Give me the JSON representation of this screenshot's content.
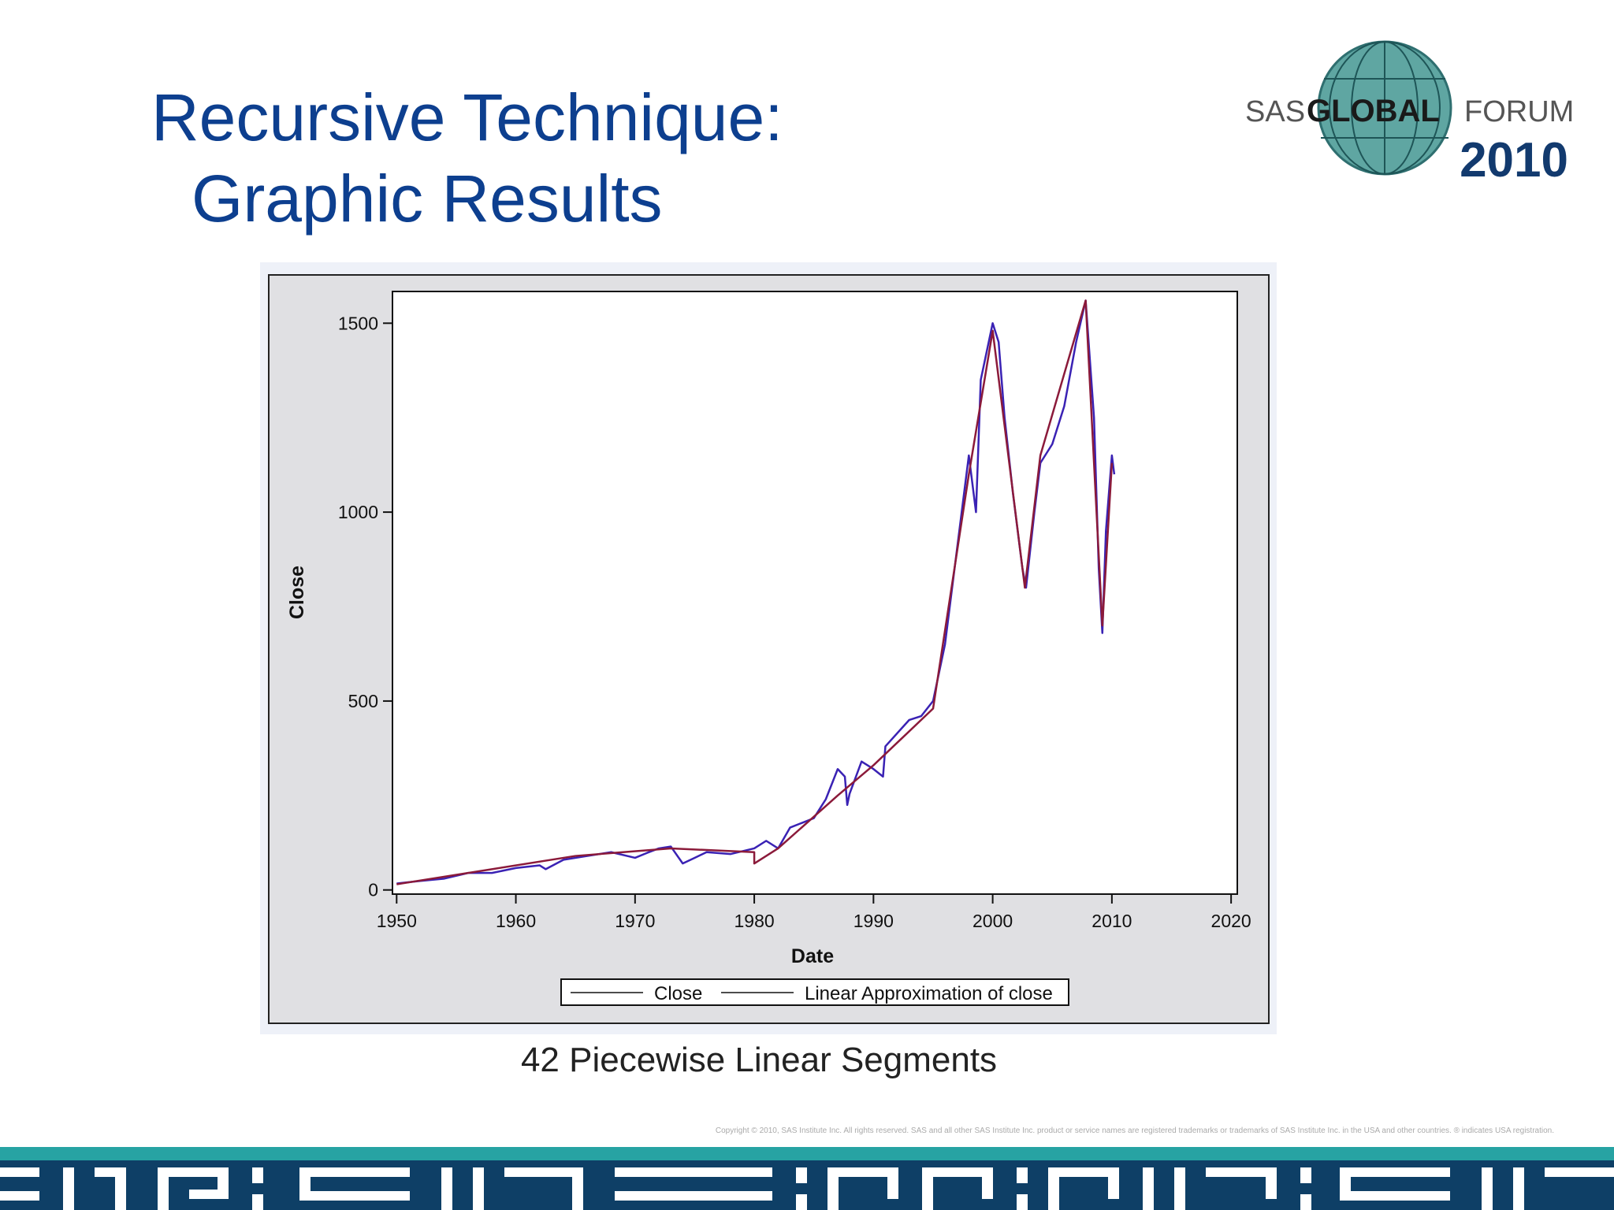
{
  "slide": {
    "title_line1": "Recursive Technique:",
    "title_line2": "Graphic Results",
    "caption": "42 Piecewise Linear Segments",
    "copyright": "Copyright © 2010, SAS Institute Inc. All rights reserved. SAS and all other SAS Institute Inc. product or service names are registered trademarks or trademarks of SAS Institute Inc. in the USA and other countries. ® indicates USA registration.",
    "logo": {
      "sas": "SAS",
      "global": "GLOBAL",
      "forum": "FORUM",
      "year": "2010"
    }
  },
  "chart_data": {
    "type": "line",
    "xlabel": "Date",
    "ylabel": "Close",
    "xlim": [
      1949.65,
      2020.52
    ],
    "ylim": [
      -11,
      1584
    ],
    "xticks": [
      1950,
      1960,
      1970,
      1980,
      1990,
      2000,
      2010,
      2020
    ],
    "yticks": [
      0,
      500,
      1000,
      1500
    ],
    "grid": false,
    "legend": "bottom",
    "series": [
      {
        "name": "Close",
        "color": "#3a22b4",
        "x": [
          1950,
          1952,
          1954,
          1956,
          1958,
          1960,
          1962,
          1962.5,
          1964,
          1966,
          1967,
          1968,
          1970,
          1971,
          1972,
          1973,
          1974,
          1975,
          1976,
          1978,
          1980,
          1981,
          1982,
          1983,
          1985,
          1986,
          1987,
          1987.6,
          1987.8,
          1988,
          1989,
          1990,
          1990.8,
          1991,
          1993,
          1994,
          1995,
          1996,
          1997,
          1998,
          1998.6,
          1999,
          2000,
          2000.5,
          2001,
          2001.7,
          2002.5,
          2002.8,
          2003.5,
          2004,
          2005,
          2006,
          2007,
          2007.8,
          2008.5,
          2008.9,
          2009.2,
          2009.5,
          2010,
          2010.2
        ],
        "values": [
          17,
          24,
          30,
          45,
          45,
          58,
          65,
          55,
          80,
          90,
          95,
          100,
          85,
          98,
          110,
          115,
          70,
          85,
          100,
          95,
          110,
          130,
          110,
          165,
          190,
          240,
          320,
          300,
          225,
          255,
          340,
          320,
          300,
          380,
          450,
          460,
          500,
          650,
          900,
          1150,
          1000,
          1350,
          1500,
          1450,
          1250,
          1050,
          850,
          800,
          1000,
          1130,
          1180,
          1280,
          1450,
          1560,
          1250,
          850,
          680,
          950,
          1150,
          1100
        ]
      },
      {
        "name": "Linear Approximation of close",
        "color": "#8b1a3a",
        "x": [
          1950,
          1956,
          1965,
          1973,
          1980,
          1980,
          1982,
          1987,
          1990,
          1995,
          1998,
          2000,
          2002.7,
          2004,
          2007.8,
          2009.2,
          2010
        ],
        "values": [
          15,
          45,
          90,
          110,
          100,
          70,
          110,
          250,
          330,
          480,
          1100,
          1480,
          800,
          1150,
          1560,
          700,
          1130
        ]
      }
    ]
  }
}
